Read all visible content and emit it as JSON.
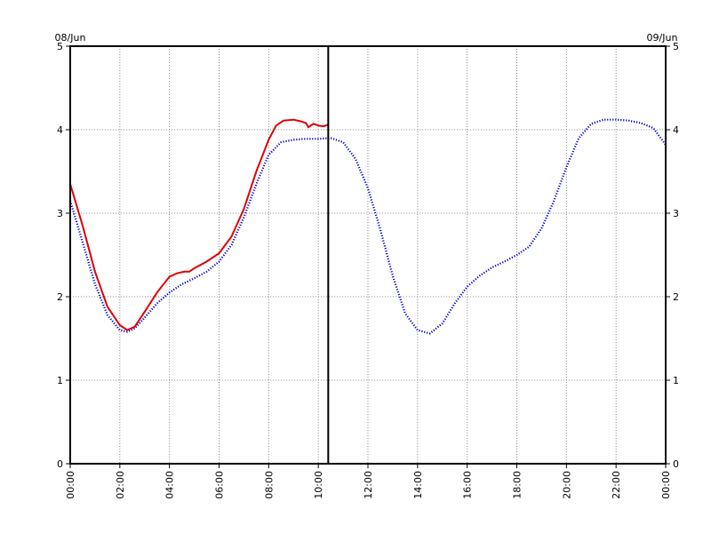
{
  "chart_data": {
    "type": "line",
    "title": "",
    "xlabel": "",
    "ylabel": "",
    "date_left": "08/Jun",
    "date_right": "09/Jun",
    "xlim": [
      0,
      24
    ],
    "ylim": [
      0,
      5
    ],
    "grid": true,
    "grid_style": "dotted",
    "x_ticks": [
      0,
      2,
      4,
      6,
      8,
      10,
      12,
      14,
      16,
      18,
      20,
      22,
      24
    ],
    "x_tick_labels": [
      "00:00",
      "02:00",
      "04:00",
      "06:00",
      "08:00",
      "10:00",
      "12:00",
      "14:00",
      "16:00",
      "18:00",
      "20:00",
      "22:00",
      "00:00"
    ],
    "y_ticks": [
      0,
      1,
      2,
      3,
      4,
      5
    ],
    "y_tick_labels": [
      "0",
      "1",
      "2",
      "3",
      "4",
      "5"
    ],
    "current_time": 10.4,
    "series": [
      {
        "color": "#0000cc",
        "style": "dotted",
        "x": [
          0,
          0.5,
          1,
          1.5,
          2,
          2.3,
          2.6,
          3,
          3.5,
          4,
          4.5,
          5,
          5.5,
          6,
          6.5,
          7,
          7.5,
          8,
          8.5,
          9,
          9.5,
          10,
          10.5,
          11,
          11.5,
          12,
          12.5,
          13,
          13.5,
          14,
          14.5,
          15,
          15.5,
          16,
          16.5,
          17,
          17.5,
          18,
          18.5,
          19,
          19.5,
          20,
          20.5,
          21,
          21.5,
          22,
          22.5,
          23,
          23.5,
          24
        ],
        "y": [
          3.15,
          2.65,
          2.15,
          1.78,
          1.6,
          1.58,
          1.62,
          1.75,
          1.92,
          2.05,
          2.15,
          2.22,
          2.3,
          2.42,
          2.62,
          2.95,
          3.35,
          3.7,
          3.85,
          3.88,
          3.89,
          3.89,
          3.9,
          3.85,
          3.65,
          3.3,
          2.8,
          2.25,
          1.8,
          1.6,
          1.56,
          1.68,
          1.92,
          2.12,
          2.25,
          2.35,
          2.42,
          2.5,
          2.6,
          2.82,
          3.15,
          3.55,
          3.9,
          4.07,
          4.12,
          4.12,
          4.11,
          4.08,
          4.02,
          3.82
        ]
      },
      {
        "color": "#dd0000",
        "style": "solid",
        "x": [
          0,
          0.5,
          1,
          1.5,
          2,
          2.3,
          2.6,
          3,
          3.5,
          4,
          4.3,
          4.6,
          4.8,
          5,
          5.5,
          6,
          6.5,
          7,
          7.5,
          8,
          8.3,
          8.6,
          9,
          9.3,
          9.5,
          9.6,
          9.8,
          10,
          10.2,
          10.4
        ],
        "y": [
          3.35,
          2.85,
          2.3,
          1.88,
          1.66,
          1.6,
          1.64,
          1.82,
          2.05,
          2.24,
          2.28,
          2.3,
          2.3,
          2.34,
          2.42,
          2.52,
          2.72,
          3.05,
          3.5,
          3.88,
          4.05,
          4.11,
          4.12,
          4.1,
          4.08,
          4.03,
          4.07,
          4.05,
          4.04,
          4.06
        ]
      }
    ]
  }
}
